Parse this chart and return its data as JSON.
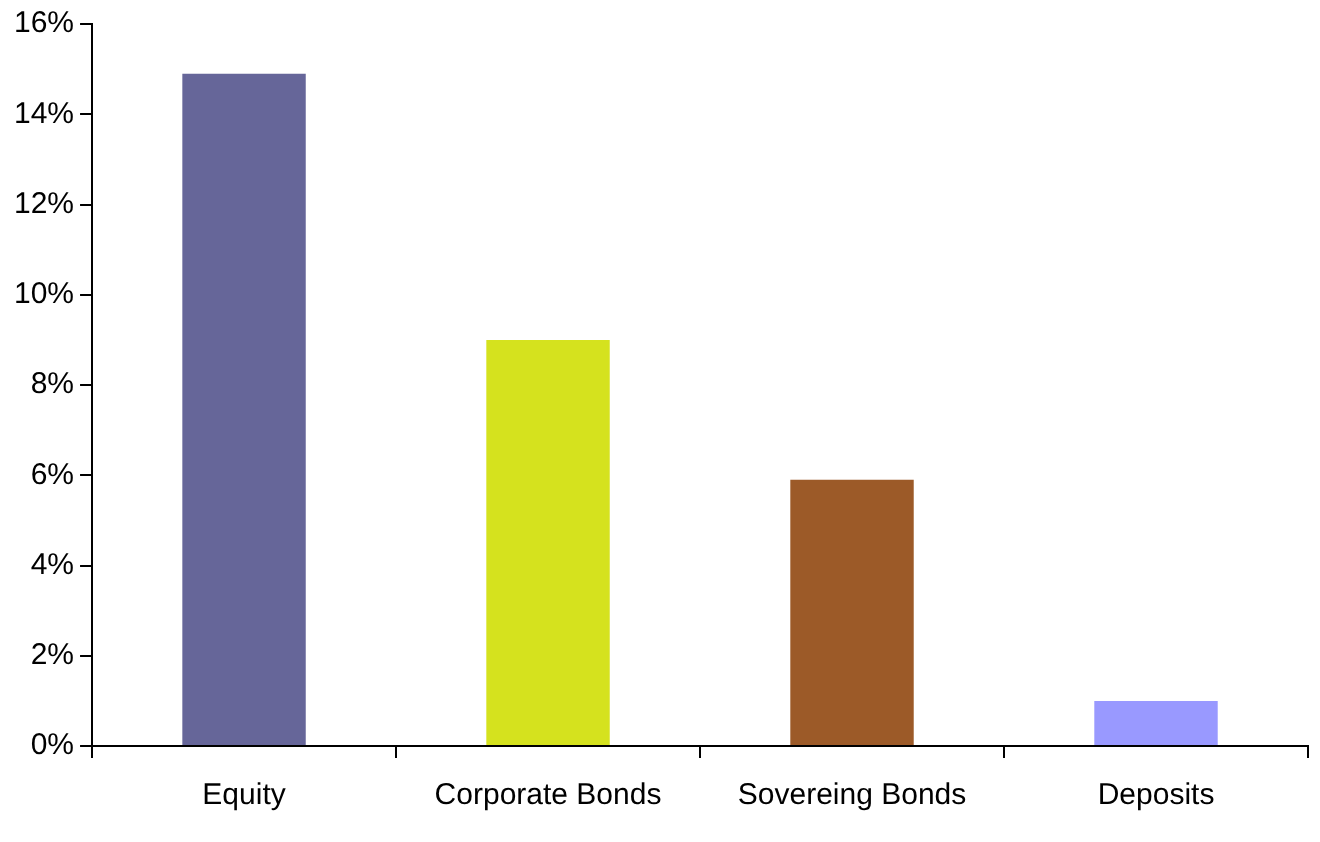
{
  "chart_data": {
    "type": "bar",
    "categories": [
      "Equity",
      "Corporate Bonds",
      "Sovereing Bonds",
      "Deposits"
    ],
    "values": [
      14.9,
      9.0,
      5.9,
      1.0
    ],
    "colors": [
      "#666699",
      "#d5e21e",
      "#9c5a28",
      "#9999ff"
    ],
    "ylim": [
      0,
      16
    ],
    "yticks": [
      {
        "value": 0,
        "label": "0%"
      },
      {
        "value": 2,
        "label": "2%"
      },
      {
        "value": 4,
        "label": "4%"
      },
      {
        "value": 6,
        "label": "6%"
      },
      {
        "value": 8,
        "label": "8%"
      },
      {
        "value": 10,
        "label": "10%"
      },
      {
        "value": 12,
        "label": "12%"
      },
      {
        "value": 14,
        "label": "14%"
      },
      {
        "value": 16,
        "label": "16%"
      }
    ],
    "grid": false,
    "legend": false
  }
}
